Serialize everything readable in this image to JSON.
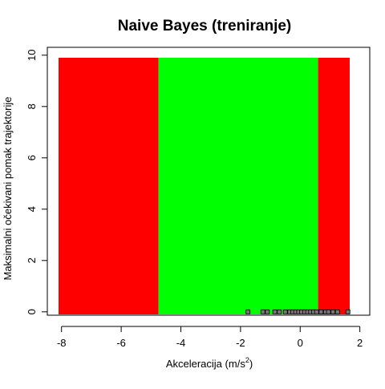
{
  "chart_data": {
    "type": "heatmap",
    "title": "Naive Bayes (treniranje)",
    "xlabel": {
      "prefix": "Akceleracija (m",
      "unit_den": "s",
      "unit_exp": "2",
      "suffix": ")"
    },
    "ylabel": "Maksimalni očekivani pomak trajektorije",
    "xlim": [
      -8.1,
      1.66
    ],
    "ylim": [
      -0.1,
      9.9
    ],
    "xticks": [
      -8,
      -6,
      -4,
      -2,
      0,
      2
    ],
    "yticks": [
      0,
      2,
      4,
      6,
      8,
      10
    ],
    "regions": [
      {
        "x0": -8.1,
        "x1": -4.75,
        "class": "red"
      },
      {
        "x0": -4.75,
        "x1": 0.6,
        "class": "green"
      },
      {
        "x0": 0.6,
        "x1": 1.66,
        "class": "red"
      }
    ],
    "class_colors": {
      "red": "#ff0000",
      "green": "#00ff00"
    },
    "training_points": {
      "y": 0,
      "x": [
        -1.75,
        -1.25,
        -1.1,
        -0.85,
        -0.7,
        -0.5,
        -0.35,
        -0.25,
        -0.15,
        -0.05,
        0.05,
        0.15,
        0.25,
        0.35,
        0.45,
        0.55,
        0.7,
        0.85,
        0.95,
        1.1,
        1.25,
        1.6
      ]
    },
    "point_style": {
      "fill": "#777777",
      "stroke": "#000000"
    },
    "grid": false,
    "legend": "none"
  }
}
